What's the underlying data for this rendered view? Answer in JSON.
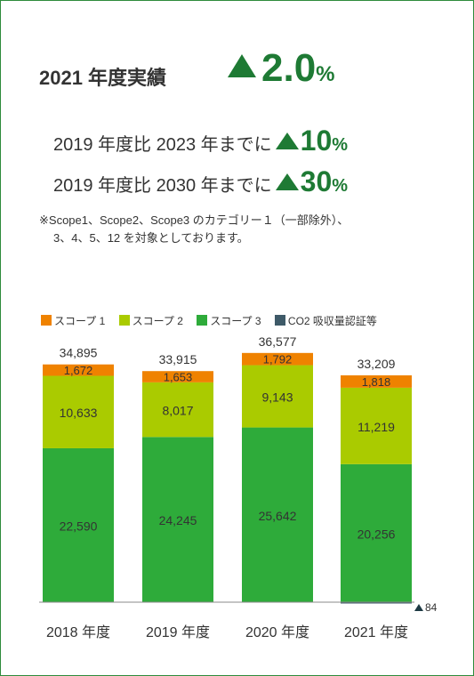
{
  "headline": {
    "label": "2021 年度実績",
    "value": "2.0",
    "unit": "%"
  },
  "targets": [
    {
      "label": "2019 年度比 2023 年までに",
      "value": "10",
      "unit": "%"
    },
    {
      "label": "2019 年度比 2030 年までに",
      "value": "30",
      "unit": "%"
    }
  ],
  "note": {
    "line1": "※Scope1、Scope2、Scope3 のカテゴリー１（一部除外）、",
    "line2": "3、4、5、12 を対象としております。"
  },
  "colors": {
    "border": "#2e8b3c",
    "accent": "#1e7a34",
    "scope1": "#ef8200",
    "scope2": "#aacb00",
    "scope3": "#2eab3a",
    "co2": "#3e5a68"
  },
  "chart_data": {
    "type": "bar",
    "stacked": true,
    "categories": [
      "2018 年度",
      "2019 年度",
      "2020 年度",
      "2021 年度"
    ],
    "series": [
      {
        "name": "スコープ 3",
        "values": [
          22590,
          24245,
          25642,
          20256
        ]
      },
      {
        "name": "スコープ 2",
        "values": [
          10633,
          8017,
          9143,
          11219
        ]
      },
      {
        "name": "スコープ 1",
        "values": [
          1672,
          1653,
          1792,
          1818
        ]
      },
      {
        "name": "CO2 吸収量認証等",
        "values": [
          0,
          0,
          0,
          -84
        ]
      }
    ],
    "series_labels": [
      [
        "22,590",
        "24,245",
        "25,642",
        "20,256"
      ],
      [
        "10,633",
        "8,017",
        "9,143",
        "11,219"
      ],
      [
        "1,672",
        "1,653",
        "1,792",
        "1,818"
      ]
    ],
    "totals": [
      "34,895",
      "33,915",
      "36,577",
      "33,209"
    ],
    "annotation": "84",
    "legend_position": "top-left",
    "grid": false
  }
}
